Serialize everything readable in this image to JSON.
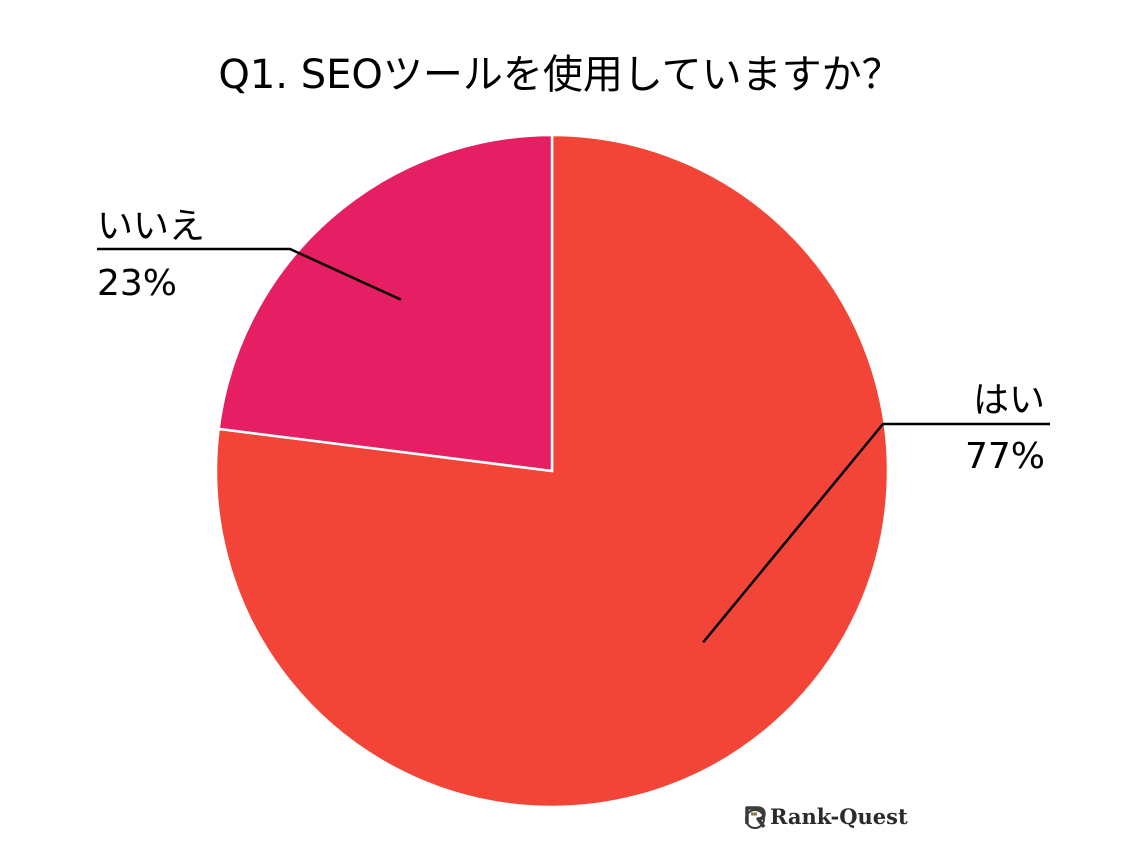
{
  "chart_data": {
    "type": "pie",
    "title": "Q1. SEOツールを使用していますか？",
    "slices": [
      {
        "label": "はい",
        "value": 77,
        "value_label": "77%",
        "color": "#f24437"
      },
      {
        "label": "いいえ",
        "value": 23,
        "value_label": "23%",
        "color": "#e61e63"
      }
    ],
    "start_angle_deg": 0,
    "direction": "clockwise",
    "slice_border_color": "#ffffff",
    "leader_line_color": "#000000",
    "legend": "none"
  },
  "watermark": {
    "text": "Rank-Quest",
    "icon": "rank-quest-logo-icon"
  }
}
